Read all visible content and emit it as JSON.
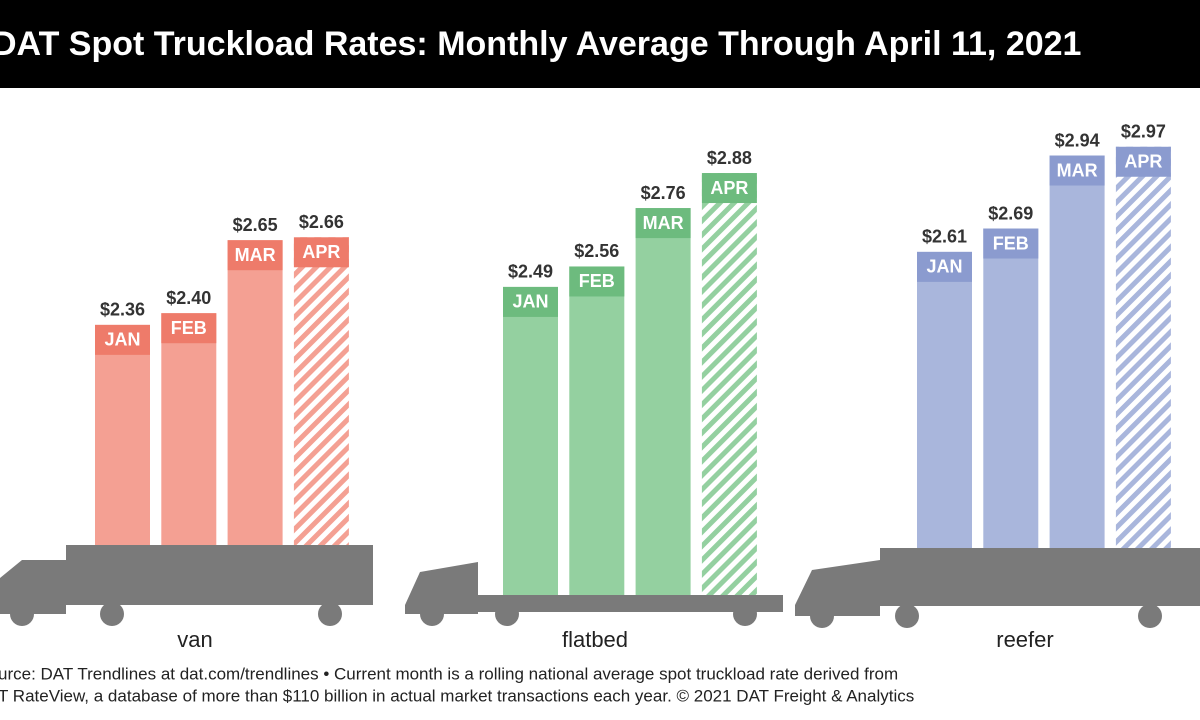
{
  "title": "DAT Spot Truckload Rates: Monthly Average Through April 11, 2021",
  "source": [
    "urce: DAT Trendlines at dat.com/trendlines • Current month is a rolling national average spot truckload rate derived from",
    "T RateView, a database of more than $110 billion in actual market transactions each year. © 2021 DAT Freight & Analytics"
  ],
  "chart_data": [
    {
      "type": "bar",
      "label": "van",
      "categories": [
        "JAN",
        "FEB",
        "MAR",
        "APR"
      ],
      "values": [
        2.36,
        2.4,
        2.65,
        2.66
      ],
      "value_labels": [
        "$2.36",
        "$2.40",
        "$2.65",
        "$2.66"
      ],
      "color": "#f4a093",
      "label_color": "#ee7b6a",
      "ylim": [
        2.0,
        3.0
      ]
    },
    {
      "type": "bar",
      "label": "flatbed",
      "categories": [
        "JAN",
        "FEB",
        "MAR",
        "APR"
      ],
      "values": [
        2.49,
        2.56,
        2.76,
        2.88
      ],
      "value_labels": [
        "$2.49",
        "$2.56",
        "$2.76",
        "$2.88"
      ],
      "color": "#94d0a0",
      "label_color": "#6dbb7e",
      "ylim": [
        2.0,
        3.0
      ]
    },
    {
      "type": "bar",
      "label": "reefer",
      "categories": [
        "JAN",
        "FEB",
        "MAR",
        "APR"
      ],
      "values": [
        2.61,
        2.69,
        2.94,
        2.97
      ],
      "value_labels": [
        "$2.61",
        "$2.69",
        "$2.94",
        "$2.97"
      ],
      "color": "#a9b6dc",
      "label_color": "#8b9bcf",
      "ylim": [
        2.0,
        3.0
      ]
    }
  ]
}
